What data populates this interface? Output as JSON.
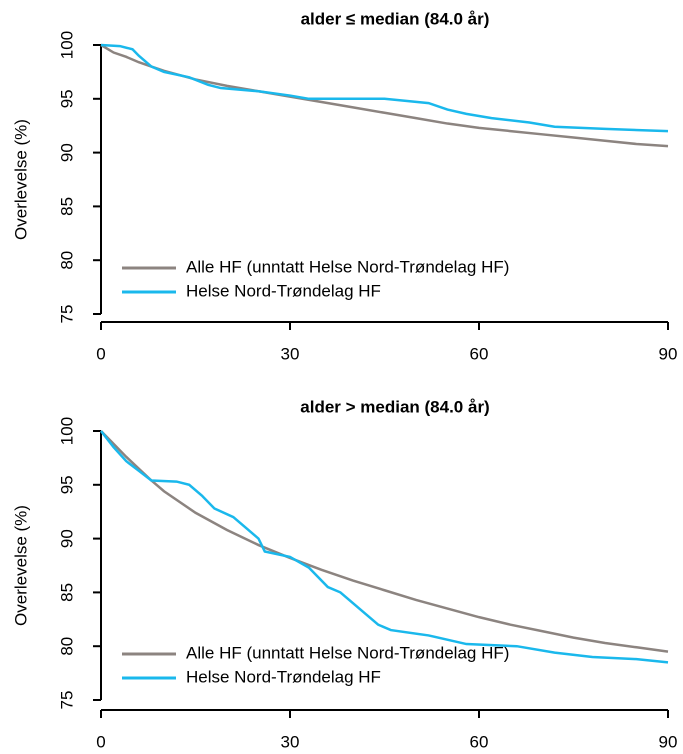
{
  "chart_data": [
    {
      "type": "line",
      "title": "alder ≤ median (84.0 år)",
      "y_label": "Overlevelse (%)",
      "xlim": [
        0,
        90
      ],
      "xticks": [
        0,
        30,
        60,
        90
      ],
      "ylim": [
        75,
        100
      ],
      "yticks": [
        75,
        80,
        85,
        90,
        95,
        100
      ],
      "legend": "bottom-left",
      "series": [
        {
          "name": "Alle HF (unntatt Helse Nord-Trøndelag HF)",
          "color": "#8c8480",
          "x": [
            0,
            2,
            4,
            6,
            8,
            10,
            15,
            20,
            25,
            30,
            35,
            40,
            45,
            50,
            55,
            60,
            65,
            70,
            75,
            80,
            85,
            90
          ],
          "values": [
            100,
            99.3,
            98.9,
            98.4,
            98.0,
            97.6,
            96.8,
            96.2,
            95.7,
            95.2,
            94.7,
            94.2,
            93.7,
            93.2,
            92.7,
            92.3,
            92.0,
            91.7,
            91.4,
            91.1,
            90.8,
            90.6
          ]
        },
        {
          "name": "Helse Nord-Trøndelag HF",
          "color": "#1ab8ec",
          "x": [
            0,
            3,
            5,
            6,
            8,
            10,
            14,
            17,
            19,
            25,
            30,
            33,
            45,
            52,
            55,
            58,
            62,
            68,
            72,
            80,
            90
          ],
          "values": [
            100,
            99.9,
            99.6,
            99.0,
            98.0,
            97.5,
            97.0,
            96.3,
            96.0,
            95.7,
            95.3,
            95.0,
            95.0,
            94.6,
            94.0,
            93.6,
            93.2,
            92.8,
            92.4,
            92.2,
            92.0
          ]
        }
      ]
    },
    {
      "type": "line",
      "title": "alder > median (84.0 år)",
      "y_label": "Overlevelse (%)",
      "xlim": [
        0,
        90
      ],
      "xticks": [
        0,
        30,
        60,
        90
      ],
      "ylim": [
        75,
        100
      ],
      "yticks": [
        75,
        80,
        85,
        90,
        95,
        100
      ],
      "legend": "bottom-left",
      "series": [
        {
          "name": "Alle HF (unntatt Helse Nord-Trøndelag HF)",
          "color": "#8c8480",
          "x": [
            0,
            2,
            4,
            6,
            8,
            10,
            15,
            20,
            25,
            30,
            35,
            40,
            45,
            50,
            55,
            60,
            65,
            70,
            75,
            80,
            85,
            90
          ],
          "values": [
            100,
            98.8,
            97.6,
            96.5,
            95.4,
            94.4,
            92.4,
            90.8,
            89.4,
            88.2,
            87.1,
            86.1,
            85.2,
            84.3,
            83.5,
            82.7,
            82.0,
            81.4,
            80.8,
            80.3,
            79.9,
            79.5
          ]
        },
        {
          "name": "Helse Nord-Trøndelag HF",
          "color": "#1ab8ec",
          "x": [
            0,
            2,
            4,
            6,
            8,
            12,
            14,
            16,
            18,
            21,
            23,
            25,
            26,
            30,
            33,
            36,
            38,
            40,
            42,
            44,
            46,
            52,
            58,
            66,
            72,
            78,
            85,
            90
          ],
          "values": [
            100,
            98.5,
            97.2,
            96.3,
            95.4,
            95.3,
            95.0,
            94.0,
            92.8,
            92.0,
            91.0,
            90.0,
            88.8,
            88.3,
            87.3,
            85.5,
            85.0,
            84.0,
            83.0,
            82.0,
            81.5,
            81.0,
            80.2,
            80.0,
            79.4,
            79.0,
            78.8,
            78.5
          ]
        }
      ]
    }
  ]
}
